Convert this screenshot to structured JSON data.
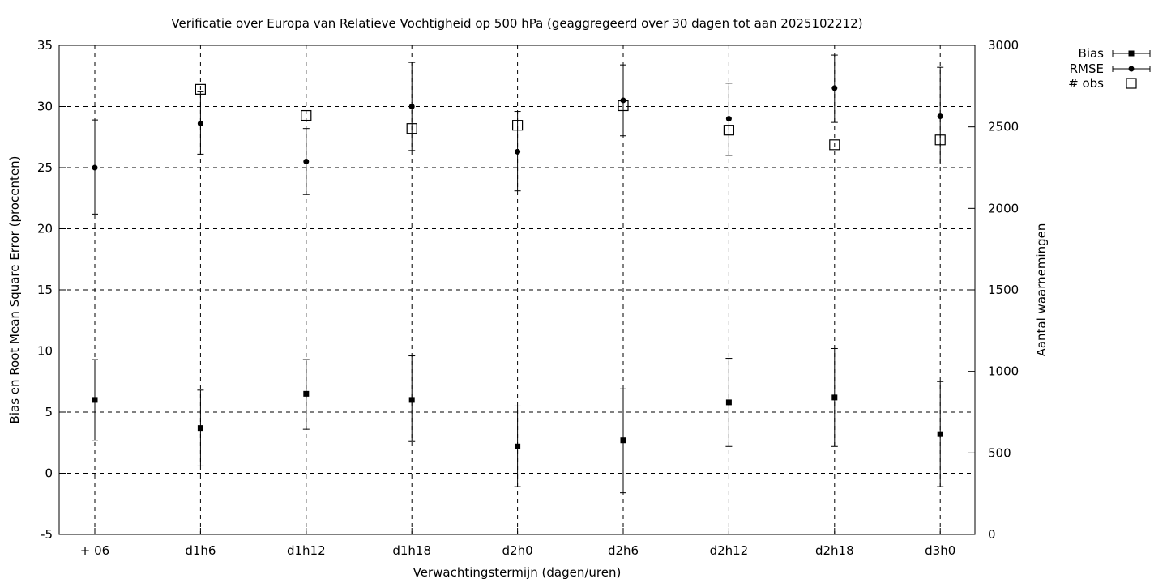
{
  "chart_data": {
    "type": "scatter",
    "title": "Verificatie over Europa van Relatieve Vochtigheid op 500 hPa (geaggregeerd over 30 dagen tot aan 2025102212)",
    "xlabel": "Verwachtingstermijn (dagen/uren)",
    "ylabel": "Bias en Root Mean Square Error (procenten)",
    "y2label": "Aantal waarnemingen",
    "categories": [
      "+ 06",
      "d1h6",
      "d1h12",
      "d1h18",
      "d2h0",
      "d2h6",
      "d2h12",
      "d2h18",
      "d3h0"
    ],
    "ylim": [
      -5,
      35
    ],
    "yticks": [
      -5,
      0,
      5,
      10,
      15,
      20,
      25,
      30,
      35
    ],
    "y2lim": [
      0,
      3000
    ],
    "y2ticks": [
      0,
      500,
      1000,
      1500,
      2000,
      2500,
      3000
    ],
    "grid": true,
    "legend_position": "top-right",
    "series": [
      {
        "name": "Bias",
        "marker": "square",
        "axis": "y",
        "values": [
          6.0,
          3.7,
          6.5,
          6.0,
          2.2,
          2.7,
          5.8,
          6.2,
          3.2
        ],
        "err_low": [
          2.7,
          0.6,
          3.6,
          2.6,
          -1.1,
          -1.6,
          2.2,
          2.2,
          -1.1
        ],
        "err_high": [
          9.3,
          6.8,
          9.3,
          9.6,
          5.5,
          6.9,
          9.4,
          10.2,
          7.5
        ]
      },
      {
        "name": "RMSE",
        "marker": "circle",
        "axis": "y",
        "values": [
          25.0,
          28.6,
          25.5,
          30.0,
          26.3,
          30.5,
          29.0,
          31.5,
          29.2
        ],
        "err_low": [
          21.2,
          26.1,
          22.8,
          26.4,
          23.1,
          27.6,
          26.0,
          28.7,
          25.3
        ],
        "err_high": [
          28.9,
          31.2,
          28.2,
          33.6,
          29.6,
          33.4,
          31.9,
          34.2,
          33.2
        ]
      },
      {
        "name": "# obs",
        "marker": "open-square",
        "axis": "y2",
        "values": [
          null,
          2730,
          2570,
          2490,
          2510,
          2630,
          2480,
          2390,
          2420
        ]
      }
    ]
  }
}
